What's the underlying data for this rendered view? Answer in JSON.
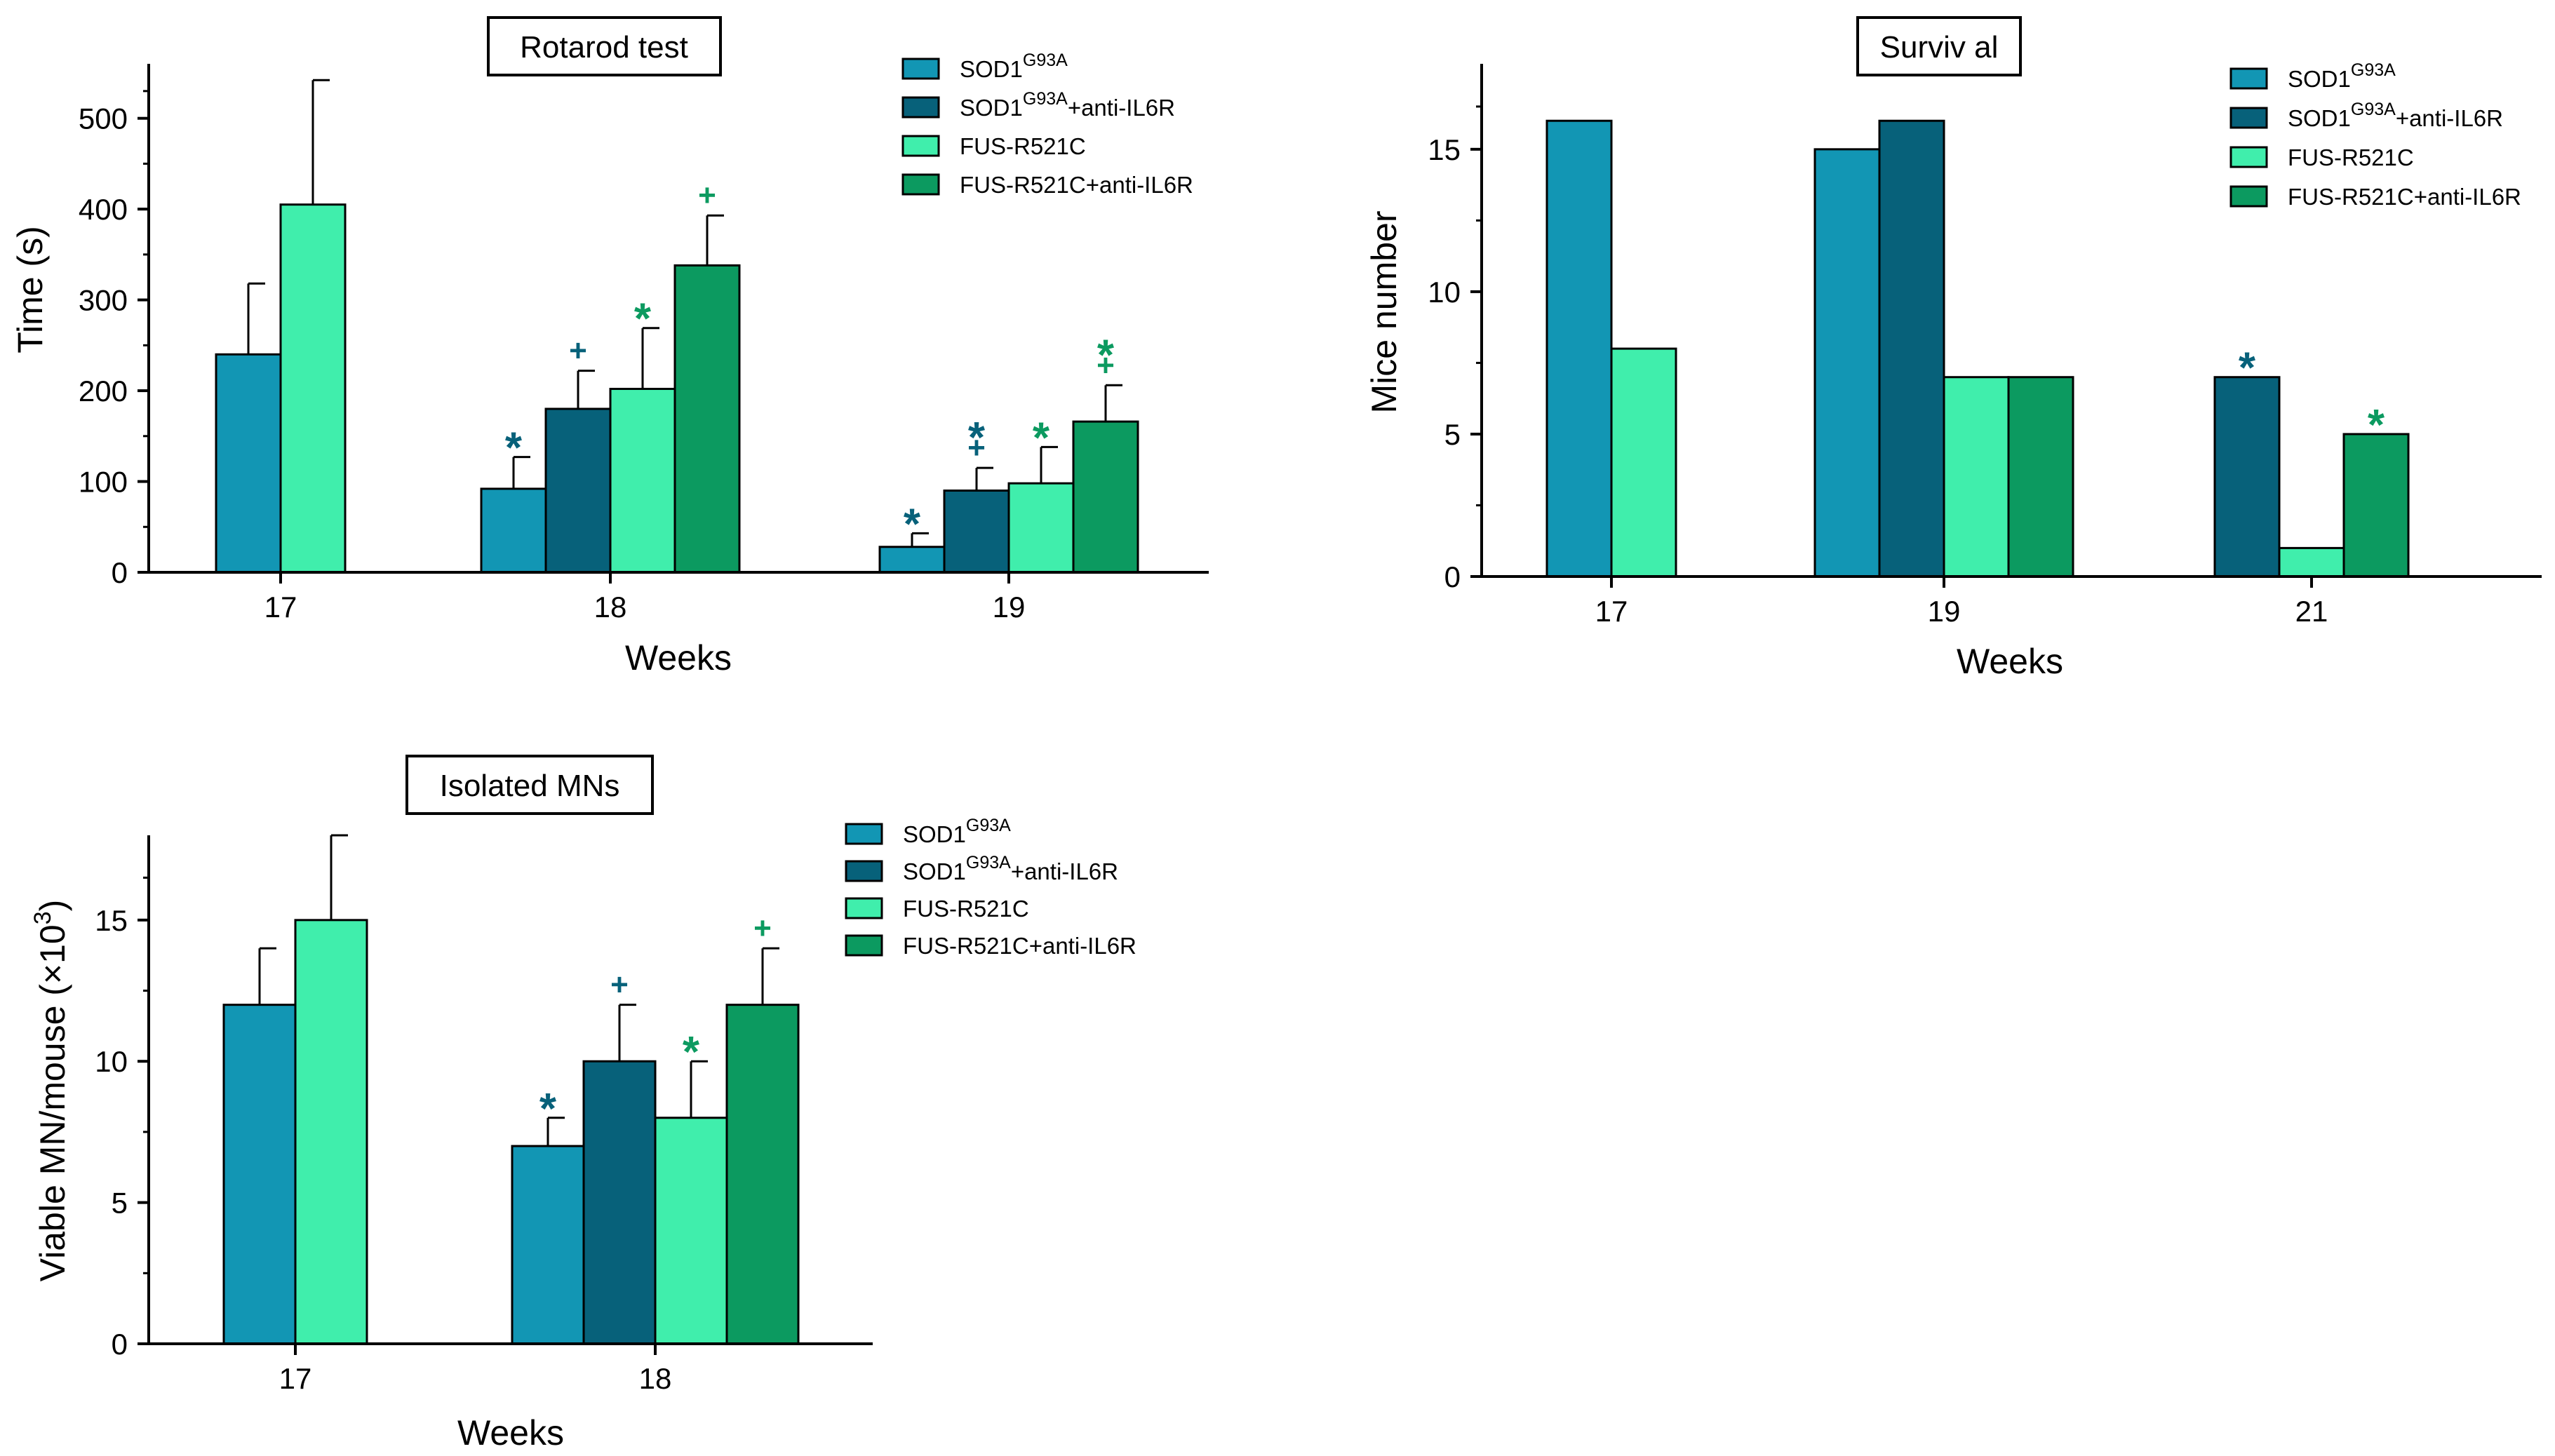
{
  "colors": {
    "sod1": "#1296b4",
    "sod1_anti": "#07617a",
    "fus": "#40eeac",
    "fus_anti": "#0c9a60",
    "mark_sod1": "#07617a",
    "mark_fus": "#0c9a60"
  },
  "legend_entries": [
    {
      "base": "SOD1",
      "sup": "G93A",
      "suffix": ""
    },
    {
      "base": "SOD1",
      "sup": "G93A",
      "suffix": "+anti-IL6R"
    },
    {
      "base": "FUS-R521C",
      "sup": "",
      "suffix": ""
    },
    {
      "base": "FUS-R521C+anti-IL6R",
      "sup": "",
      "suffix": ""
    }
  ],
  "chart_data": [
    {
      "id": "rotarod",
      "type": "bar",
      "title": "Rotarod test",
      "xlabel": "Weeks",
      "ylabel": "Time (s)",
      "ylim": [
        0,
        560
      ],
      "yticks": [
        0,
        100,
        200,
        300,
        400,
        500
      ],
      "categories": [
        "17",
        "18",
        "19"
      ],
      "series": [
        {
          "name": "SOD1G93A",
          "values": [
            240,
            92,
            28
          ],
          "errors": [
            78,
            35,
            15
          ]
        },
        {
          "name": "SOD1G93A+anti-IL6R",
          "values": [
            null,
            180,
            90
          ],
          "errors": [
            null,
            42,
            25
          ]
        },
        {
          "name": "FUS-R521C",
          "values": [
            405,
            202,
            98
          ],
          "errors": [
            137,
            67,
            40
          ]
        },
        {
          "name": "FUS-R521C+anti-IL6R",
          "values": [
            null,
            338,
            166
          ],
          "errors": [
            null,
            55,
            40
          ]
        }
      ],
      "annotations": [
        {
          "category": 1,
          "series": 0,
          "marks": [
            "*"
          ]
        },
        {
          "category": 1,
          "series": 1,
          "marks": [
            "+"
          ]
        },
        {
          "category": 1,
          "series": 2,
          "marks": [
            "*"
          ]
        },
        {
          "category": 1,
          "series": 3,
          "marks": [
            "+"
          ]
        },
        {
          "category": 2,
          "series": 0,
          "marks": [
            "*"
          ]
        },
        {
          "category": 2,
          "series": 1,
          "marks": [
            "+",
            "*"
          ]
        },
        {
          "category": 2,
          "series": 2,
          "marks": [
            "*"
          ]
        },
        {
          "category": 2,
          "series": 3,
          "marks": [
            "+",
            "*"
          ]
        }
      ],
      "legend": "top-right"
    },
    {
      "id": "survival",
      "type": "bar",
      "title": "Surviv al",
      "xlabel": "Weeks",
      "ylabel": "Mice number",
      "ylim": [
        0,
        18
      ],
      "yticks": [
        0,
        5,
        10,
        15
      ],
      "categories": [
        "17",
        "19",
        "21"
      ],
      "series": [
        {
          "name": "SOD1G93A",
          "values": [
            16,
            15,
            null
          ]
        },
        {
          "name": "SOD1G93A+anti-IL6R",
          "values": [
            null,
            16,
            7
          ]
        },
        {
          "name": "FUS-R521C",
          "values": [
            8,
            7,
            1
          ]
        },
        {
          "name": "FUS-R521C+anti-IL6R",
          "values": [
            null,
            7,
            5
          ]
        }
      ],
      "annotations": [
        {
          "category": 2,
          "series": 1,
          "marks": [
            "*"
          ]
        },
        {
          "category": 2,
          "series": 3,
          "marks": [
            "*"
          ]
        }
      ],
      "legend": "top-right"
    },
    {
      "id": "isolated",
      "type": "bar",
      "title": "Isolated MNs",
      "xlabel": "Weeks",
      "ylabel": "Viable MN/mouse (×10",
      "ylabel_sup": "3",
      "ylabel_end": ")",
      "ylim": [
        0,
        18
      ],
      "yticks": [
        0,
        5,
        10,
        15
      ],
      "categories": [
        "17",
        "18"
      ],
      "series": [
        {
          "name": "SOD1G93A",
          "values": [
            12,
            7
          ],
          "errors": [
            2,
            1
          ]
        },
        {
          "name": "SOD1G93A+anti-IL6R",
          "values": [
            null,
            10
          ],
          "errors": [
            null,
            2
          ]
        },
        {
          "name": "FUS-R521C",
          "values": [
            15,
            8
          ],
          "errors": [
            3,
            2
          ]
        },
        {
          "name": "FUS-R521C+anti-IL6R",
          "values": [
            null,
            12
          ],
          "errors": [
            null,
            2
          ]
        }
      ],
      "annotations": [
        {
          "category": 1,
          "series": 0,
          "marks": [
            "*"
          ]
        },
        {
          "category": 1,
          "series": 1,
          "marks": [
            "+"
          ]
        },
        {
          "category": 1,
          "series": 2,
          "marks": [
            "*"
          ]
        },
        {
          "category": 1,
          "series": 3,
          "marks": [
            "+"
          ]
        }
      ],
      "legend": "top-right"
    }
  ]
}
